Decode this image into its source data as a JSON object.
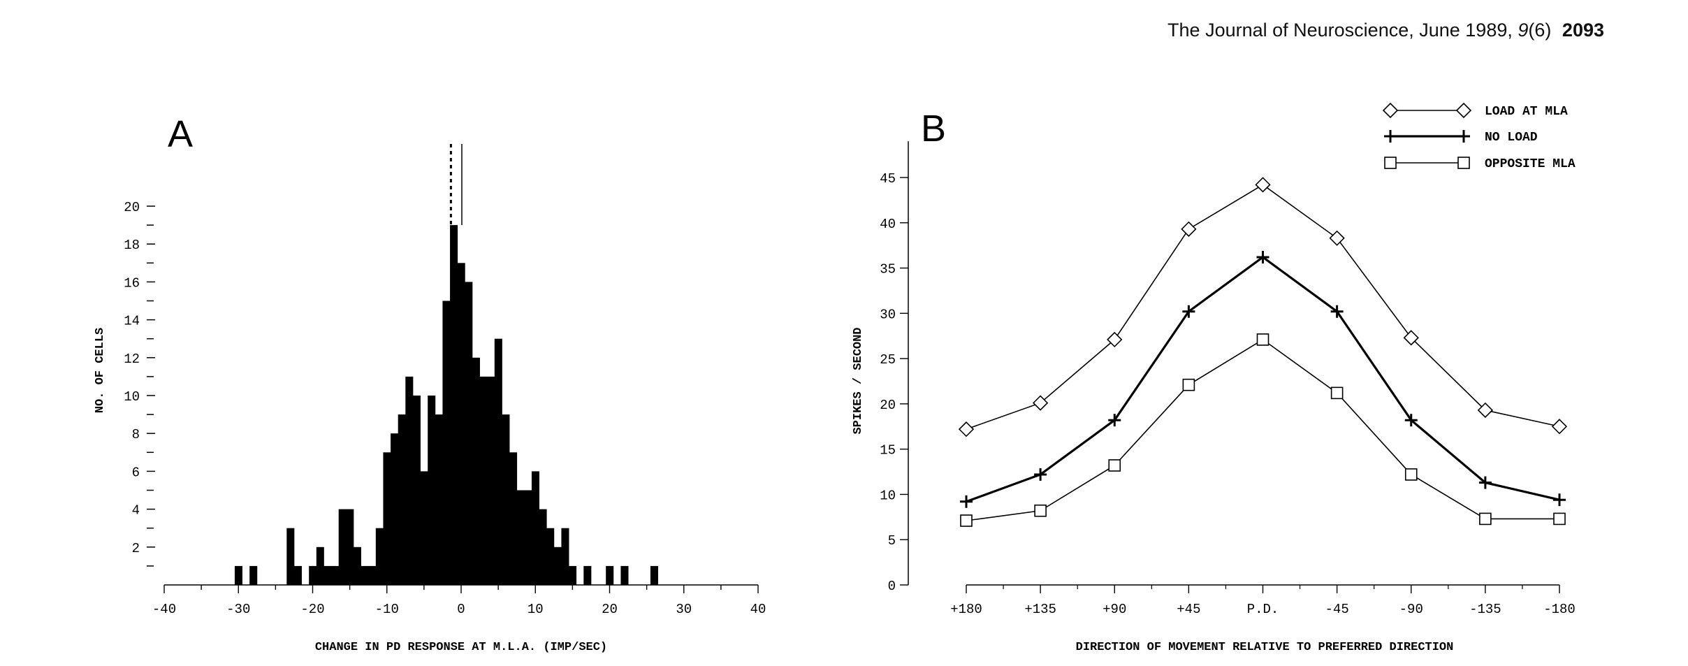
{
  "header": {
    "journal": "The Journal of Neuroscience, June 1989,",
    "volume": "9",
    "issue": "(6)",
    "page": "2093"
  },
  "chart_data": [
    {
      "panel": "A",
      "type": "bar",
      "xlabel": "CHANGE IN PD RESPONSE AT M.L.A. (IMP/SEC)",
      "ylabel": "NO. OF CELLS",
      "xlim": [
        -40,
        40
      ],
      "ylim": [
        0,
        20
      ],
      "xticks": [
        -40,
        -30,
        -20,
        -10,
        0,
        10,
        20,
        30,
        40
      ],
      "yticks": [
        2,
        4,
        6,
        8,
        10,
        12,
        14,
        16,
        18,
        20
      ],
      "bin_width": 1,
      "bins": [
        {
          "x": -30,
          "count": 1
        },
        {
          "x": -28,
          "count": 1
        },
        {
          "x": -23,
          "count": 3
        },
        {
          "x": -22,
          "count": 1
        },
        {
          "x": -20,
          "count": 1
        },
        {
          "x": -19,
          "count": 2
        },
        {
          "x": -18,
          "count": 1
        },
        {
          "x": -17,
          "count": 1
        },
        {
          "x": -16,
          "count": 4
        },
        {
          "x": -15,
          "count": 4
        },
        {
          "x": -14,
          "count": 2
        },
        {
          "x": -13,
          "count": 1
        },
        {
          "x": -12,
          "count": 1
        },
        {
          "x": -11,
          "count": 3
        },
        {
          "x": -10,
          "count": 7
        },
        {
          "x": -9,
          "count": 8
        },
        {
          "x": -8,
          "count": 9
        },
        {
          "x": -7,
          "count": 11
        },
        {
          "x": -6,
          "count": 10
        },
        {
          "x": -5,
          "count": 6
        },
        {
          "x": -4,
          "count": 10
        },
        {
          "x": -3,
          "count": 9
        },
        {
          "x": -2,
          "count": 15
        },
        {
          "x": -1,
          "count": 19
        },
        {
          "x": 0,
          "count": 17
        },
        {
          "x": 1,
          "count": 16
        },
        {
          "x": 2,
          "count": 12
        },
        {
          "x": 3,
          "count": 11
        },
        {
          "x": 4,
          "count": 11
        },
        {
          "x": 5,
          "count": 13
        },
        {
          "x": 6,
          "count": 9
        },
        {
          "x": 7,
          "count": 7
        },
        {
          "x": 8,
          "count": 5
        },
        {
          "x": 9,
          "count": 5
        },
        {
          "x": 10,
          "count": 6
        },
        {
          "x": 11,
          "count": 4
        },
        {
          "x": 12,
          "count": 3
        },
        {
          "x": 13,
          "count": 2
        },
        {
          "x": 14,
          "count": 3
        },
        {
          "x": 15,
          "count": 1
        },
        {
          "x": 17,
          "count": 1
        },
        {
          "x": 20,
          "count": 1
        },
        {
          "x": 22,
          "count": 1
        },
        {
          "x": 26,
          "count": 1
        }
      ],
      "reference_line_dotted_x": -1,
      "reference_line_solid_x": 0
    },
    {
      "panel": "B",
      "type": "line",
      "xlabel": "DIRECTION OF MOVEMENT RELATIVE TO PREFERRED DIRECTION",
      "ylabel": "SPIKES / SECOND",
      "categories": [
        "+180",
        "+135",
        "+90",
        "+45",
        "P.D.",
        "-45",
        "-90",
        "-135",
        "-180"
      ],
      "ylim": [
        0,
        48
      ],
      "yticks": [
        0,
        5,
        10,
        15,
        20,
        25,
        30,
        35,
        40,
        45
      ],
      "legend_position": "top-right",
      "series": [
        {
          "name": "LOAD AT MLA",
          "marker": "diamond",
          "values": [
            17.2,
            20.1,
            27.1,
            39.3,
            44.2,
            38.3,
            27.3,
            19.3,
            17.5
          ]
        },
        {
          "name": "NO LOAD",
          "marker": "plus",
          "values": [
            9.2,
            12.2,
            18.2,
            30.2,
            36.2,
            30.2,
            18.2,
            11.3,
            9.4
          ]
        },
        {
          "name": "OPPOSITE MLA",
          "marker": "square",
          "values": [
            7.1,
            8.2,
            13.2,
            22.1,
            27.1,
            21.2,
            12.2,
            7.3,
            7.3
          ]
        }
      ]
    }
  ]
}
